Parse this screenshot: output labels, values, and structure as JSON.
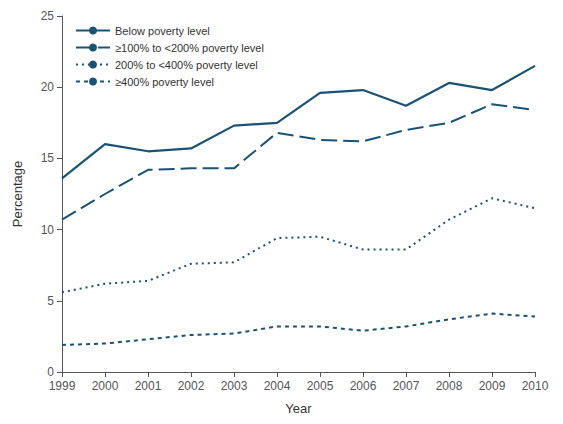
{
  "chart_data": {
    "type": "line",
    "xlabel": "Year",
    "ylabel": "Percentage",
    "x": [
      1999,
      2000,
      2001,
      2002,
      2003,
      2004,
      2005,
      2006,
      2007,
      2008,
      2009,
      2010
    ],
    "series": [
      {
        "name": "Below poverty level",
        "color": "#1a5276",
        "line_style": "solid",
        "values": [
          13.6,
          16.0,
          15.5,
          15.7,
          17.3,
          17.5,
          19.6,
          19.8,
          18.7,
          20.3,
          19.8,
          21.5
        ]
      },
      {
        "name": "≥100% to <200% poverty level",
        "color": "#1a5276",
        "line_style": "dashed",
        "values": [
          10.7,
          12.5,
          14.2,
          14.3,
          14.3,
          16.8,
          16.3,
          16.2,
          17.0,
          17.5,
          18.8,
          18.4
        ]
      },
      {
        "name": "200% to <400% poverty level",
        "color": "#1a5276",
        "line_style": "dotted",
        "values": [
          5.6,
          6.2,
          6.4,
          7.6,
          7.7,
          9.4,
          9.5,
          8.6,
          8.6,
          10.7,
          12.2,
          11.5
        ]
      },
      {
        "name": "≥400% poverty level",
        "color": "#1a5276",
        "line_style": "shortdash",
        "values": [
          1.9,
          2.0,
          2.3,
          2.6,
          2.7,
          3.2,
          3.2,
          2.9,
          3.2,
          3.7,
          4.1,
          3.9
        ]
      }
    ],
    "xlim": [
      1999,
      2010
    ],
    "xticks": [
      1999,
      2000,
      2001,
      2002,
      2003,
      2004,
      2005,
      2006,
      2007,
      2008,
      2009,
      2010
    ],
    "ylim": [
      0,
      25
    ],
    "yticks": [
      0,
      5,
      10,
      15,
      20,
      25
    ],
    "grid": false,
    "legend": "upper left"
  }
}
